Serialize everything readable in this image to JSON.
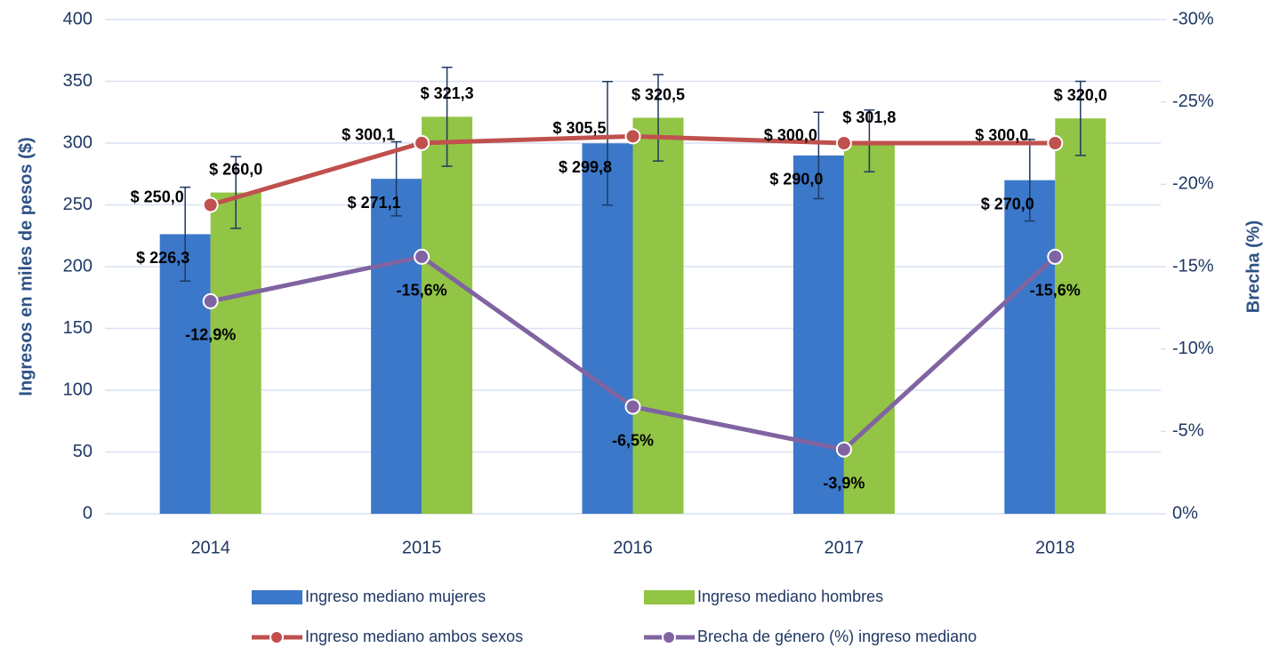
{
  "chart_data": {
    "type": "combo",
    "categories": [
      "2014",
      "2015",
      "2016",
      "2017",
      "2018"
    ],
    "ylabel": "Ingresos en miles de pesos ($)",
    "y2label": "Brecha (%)",
    "ylim": [
      0,
      400
    ],
    "yticks": [
      0,
      50,
      100,
      150,
      200,
      250,
      300,
      350,
      400
    ],
    "y2lim": [
      0,
      -30
    ],
    "y2ticks": [
      {
        "value": 0,
        "label": "0%"
      },
      {
        "value": -5,
        "label": "-5%"
      },
      {
        "value": -10,
        "label": "-10%"
      },
      {
        "value": -15,
        "label": "-15%"
      },
      {
        "value": -20,
        "label": "-20%"
      },
      {
        "value": -25,
        "label": "-25%"
      },
      {
        "value": -30,
        "label": "-30%"
      }
    ],
    "grid": true,
    "series": [
      {
        "name": "Ingreso mediano mujeres",
        "type": "bar",
        "color": "#3b78c9",
        "values": [
          226.3,
          271.1,
          299.8,
          290.0,
          270.0
        ],
        "value_labels": [
          "$ 226,3",
          "$ 271,1",
          "$ 299,8",
          "$ 290,0",
          "$ 270,0"
        ],
        "errors": [
          38,
          30,
          50,
          35,
          33
        ]
      },
      {
        "name": "Ingreso mediano hombres",
        "type": "bar",
        "color": "#92c445",
        "values": [
          260.0,
          321.3,
          320.5,
          301.8,
          320.0
        ],
        "value_labels": [
          "$ 260,0",
          "$ 321,3",
          "$ 320,5",
          "$ 301,8",
          "$ 320,0"
        ],
        "errors": [
          29,
          40,
          35,
          25,
          30
        ]
      },
      {
        "name": "Ingreso mediano ambos sexos",
        "type": "line",
        "color": "#c0504d",
        "values": [
          250.0,
          300.1,
          305.5,
          300.0,
          300.0
        ],
        "value_labels": [
          "$ 250,0",
          "$ 300,1",
          "$ 305,5",
          "$ 300,0",
          "$ 300,0"
        ]
      },
      {
        "name": "Brecha de género (%) ingreso mediano",
        "type": "line",
        "axis": "y2",
        "color": "#8064a2",
        "values": [
          -12.9,
          -15.6,
          -6.5,
          -3.9,
          -15.6
        ],
        "value_labels": [
          "-12,9%",
          "-15,6%",
          "-6,5%",
          "-3,9%",
          "-15,6%"
        ]
      }
    ]
  }
}
